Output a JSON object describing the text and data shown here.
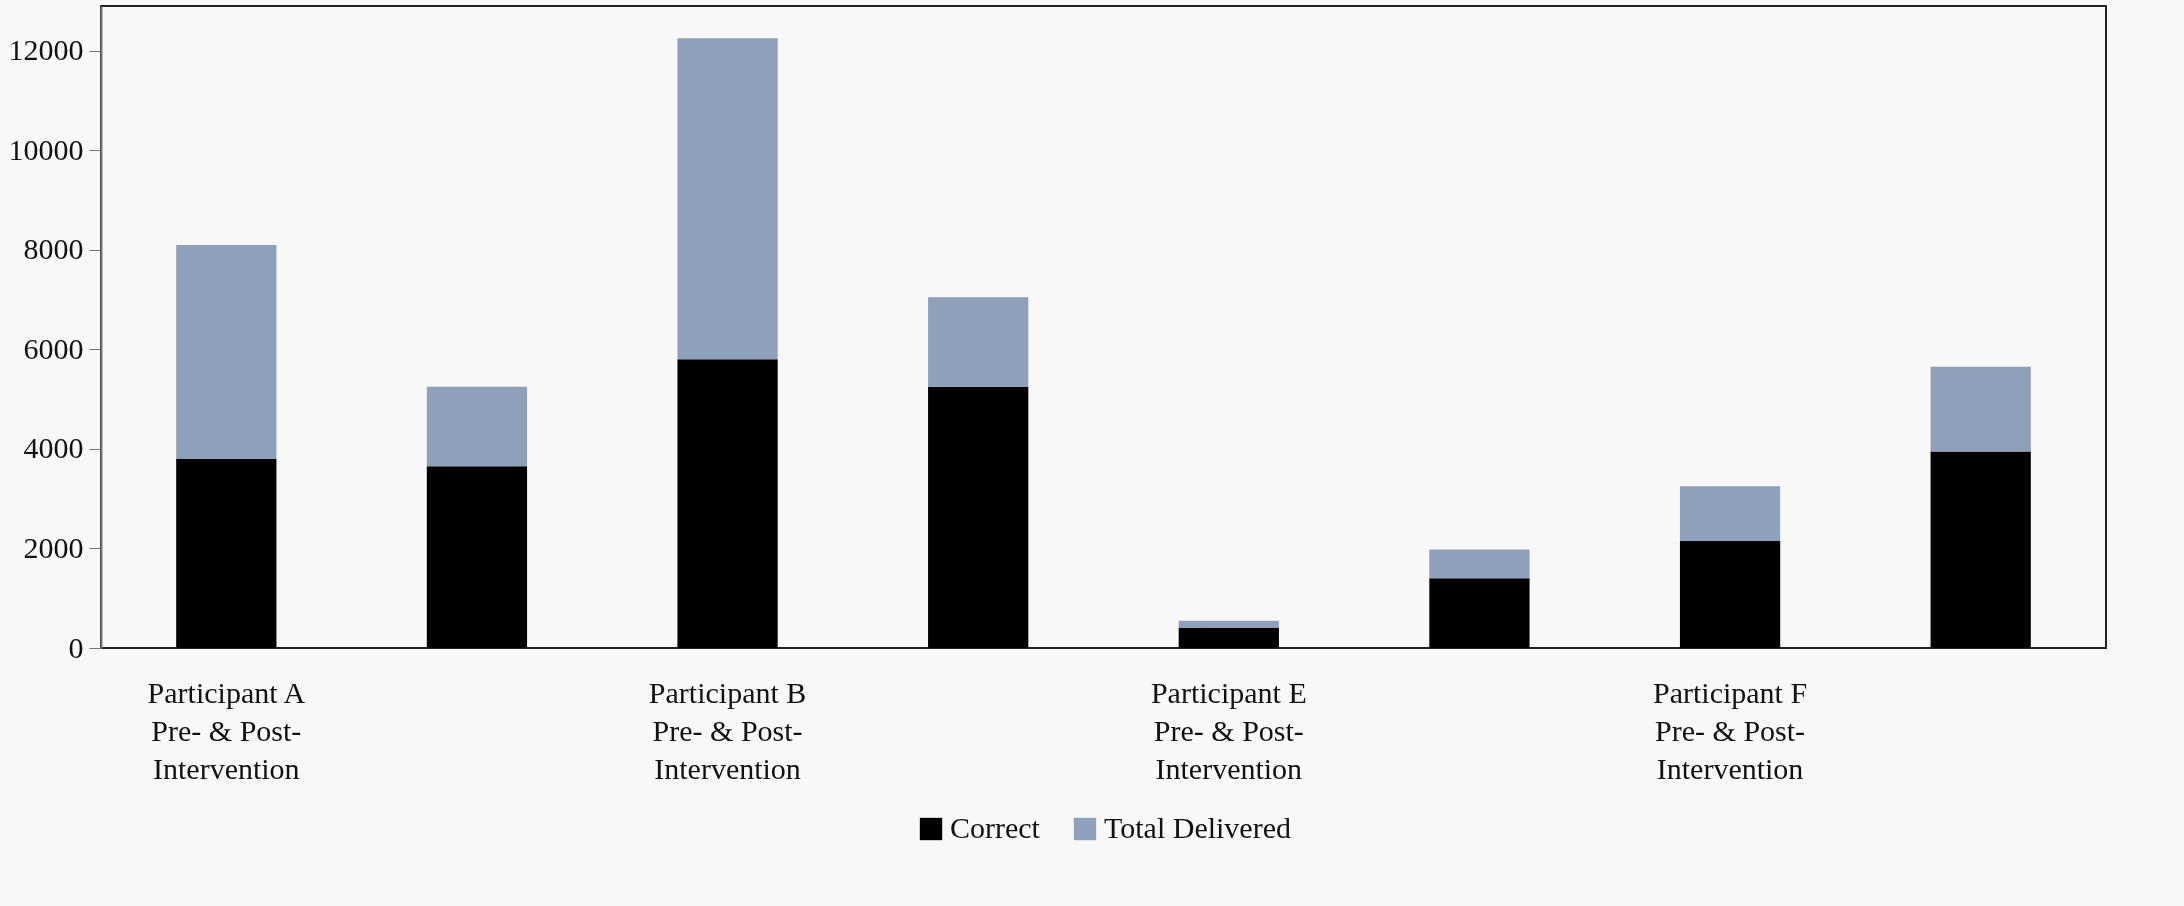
{
  "chart_data": {
    "type": "bar",
    "stacked": true,
    "categories": [
      "Participant A\nPre- & Post-\nIntervention",
      null,
      "Participant B\nPre- & Post-\nIntervention",
      null,
      "Participant E\nPre- & Post-\nIntervention",
      null,
      "Participant F\nPre- & Post-\nIntervention",
      null
    ],
    "series": [
      {
        "name": "Correct",
        "color": "#000000",
        "values": [
          3800,
          3650,
          5800,
          5250,
          400,
          1400,
          2150,
          3950
        ]
      },
      {
        "name": "Total Delivered",
        "color": "#8fa1ba",
        "values": [
          4300,
          1600,
          6450,
          1800,
          150,
          580,
          1100,
          1700
        ]
      }
    ],
    "ylim": [
      0,
      12900
    ],
    "yticks": [
      0,
      2000,
      4000,
      6000,
      8000,
      10000,
      12000
    ],
    "grid": false,
    "legend": "bottom"
  }
}
